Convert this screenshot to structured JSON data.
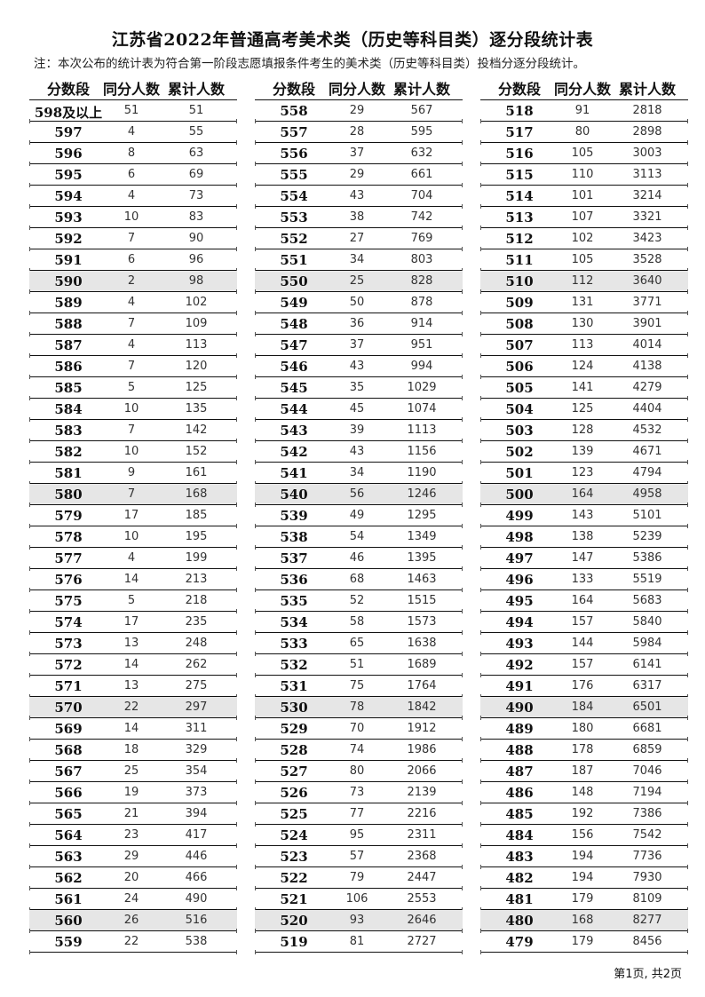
{
  "title": "江苏省2022年普通高考美术类（历史等科目类）逐分段统计表",
  "note": "注：本次公布的统计表为符合第一阶段志愿填报条件考生的美术类（历史等科目类）投档分逐分段统计。",
  "headers": [
    "分数段",
    "同分人数",
    "累计人数"
  ],
  "shade_color": "#e6e6e6",
  "shaded_scores": [
    "590",
    "580",
    "570",
    "560",
    "550",
    "540",
    "530",
    "520",
    "510",
    "500",
    "490",
    "480"
  ],
  "columns": [
    [
      [
        "598及以上",
        "51",
        "51"
      ],
      [
        "597",
        "4",
        "55"
      ],
      [
        "596",
        "8",
        "63"
      ],
      [
        "595",
        "6",
        "69"
      ],
      [
        "594",
        "4",
        "73"
      ],
      [
        "593",
        "10",
        "83"
      ],
      [
        "592",
        "7",
        "90"
      ],
      [
        "591",
        "6",
        "96"
      ],
      [
        "590",
        "2",
        "98"
      ],
      [
        "589",
        "4",
        "102"
      ],
      [
        "588",
        "7",
        "109"
      ],
      [
        "587",
        "4",
        "113"
      ],
      [
        "586",
        "7",
        "120"
      ],
      [
        "585",
        "5",
        "125"
      ],
      [
        "584",
        "10",
        "135"
      ],
      [
        "583",
        "7",
        "142"
      ],
      [
        "582",
        "10",
        "152"
      ],
      [
        "581",
        "9",
        "161"
      ],
      [
        "580",
        "7",
        "168"
      ],
      [
        "579",
        "17",
        "185"
      ],
      [
        "578",
        "10",
        "195"
      ],
      [
        "577",
        "4",
        "199"
      ],
      [
        "576",
        "14",
        "213"
      ],
      [
        "575",
        "5",
        "218"
      ],
      [
        "574",
        "17",
        "235"
      ],
      [
        "573",
        "13",
        "248"
      ],
      [
        "572",
        "14",
        "262"
      ],
      [
        "571",
        "13",
        "275"
      ],
      [
        "570",
        "22",
        "297"
      ],
      [
        "569",
        "14",
        "311"
      ],
      [
        "568",
        "18",
        "329"
      ],
      [
        "567",
        "25",
        "354"
      ],
      [
        "566",
        "19",
        "373"
      ],
      [
        "565",
        "21",
        "394"
      ],
      [
        "564",
        "23",
        "417"
      ],
      [
        "563",
        "29",
        "446"
      ],
      [
        "562",
        "20",
        "466"
      ],
      [
        "561",
        "24",
        "490"
      ],
      [
        "560",
        "26",
        "516"
      ],
      [
        "559",
        "22",
        "538"
      ]
    ],
    [
      [
        "558",
        "29",
        "567"
      ],
      [
        "557",
        "28",
        "595"
      ],
      [
        "556",
        "37",
        "632"
      ],
      [
        "555",
        "29",
        "661"
      ],
      [
        "554",
        "43",
        "704"
      ],
      [
        "553",
        "38",
        "742"
      ],
      [
        "552",
        "27",
        "769"
      ],
      [
        "551",
        "34",
        "803"
      ],
      [
        "550",
        "25",
        "828"
      ],
      [
        "549",
        "50",
        "878"
      ],
      [
        "548",
        "36",
        "914"
      ],
      [
        "547",
        "37",
        "951"
      ],
      [
        "546",
        "43",
        "994"
      ],
      [
        "545",
        "35",
        "1029"
      ],
      [
        "544",
        "45",
        "1074"
      ],
      [
        "543",
        "39",
        "1113"
      ],
      [
        "542",
        "43",
        "1156"
      ],
      [
        "541",
        "34",
        "1190"
      ],
      [
        "540",
        "56",
        "1246"
      ],
      [
        "539",
        "49",
        "1295"
      ],
      [
        "538",
        "54",
        "1349"
      ],
      [
        "537",
        "46",
        "1395"
      ],
      [
        "536",
        "68",
        "1463"
      ],
      [
        "535",
        "52",
        "1515"
      ],
      [
        "534",
        "58",
        "1573"
      ],
      [
        "533",
        "65",
        "1638"
      ],
      [
        "532",
        "51",
        "1689"
      ],
      [
        "531",
        "75",
        "1764"
      ],
      [
        "530",
        "78",
        "1842"
      ],
      [
        "529",
        "70",
        "1912"
      ],
      [
        "528",
        "74",
        "1986"
      ],
      [
        "527",
        "80",
        "2066"
      ],
      [
        "526",
        "73",
        "2139"
      ],
      [
        "525",
        "77",
        "2216"
      ],
      [
        "524",
        "95",
        "2311"
      ],
      [
        "523",
        "57",
        "2368"
      ],
      [
        "522",
        "79",
        "2447"
      ],
      [
        "521",
        "106",
        "2553"
      ],
      [
        "520",
        "93",
        "2646"
      ],
      [
        "519",
        "81",
        "2727"
      ]
    ],
    [
      [
        "518",
        "91",
        "2818"
      ],
      [
        "517",
        "80",
        "2898"
      ],
      [
        "516",
        "105",
        "3003"
      ],
      [
        "515",
        "110",
        "3113"
      ],
      [
        "514",
        "101",
        "3214"
      ],
      [
        "513",
        "107",
        "3321"
      ],
      [
        "512",
        "102",
        "3423"
      ],
      [
        "511",
        "105",
        "3528"
      ],
      [
        "510",
        "112",
        "3640"
      ],
      [
        "509",
        "131",
        "3771"
      ],
      [
        "508",
        "130",
        "3901"
      ],
      [
        "507",
        "113",
        "4014"
      ],
      [
        "506",
        "124",
        "4138"
      ],
      [
        "505",
        "141",
        "4279"
      ],
      [
        "504",
        "125",
        "4404"
      ],
      [
        "503",
        "128",
        "4532"
      ],
      [
        "502",
        "139",
        "4671"
      ],
      [
        "501",
        "123",
        "4794"
      ],
      [
        "500",
        "164",
        "4958"
      ],
      [
        "499",
        "143",
        "5101"
      ],
      [
        "498",
        "138",
        "5239"
      ],
      [
        "497",
        "147",
        "5386"
      ],
      [
        "496",
        "133",
        "5519"
      ],
      [
        "495",
        "164",
        "5683"
      ],
      [
        "494",
        "157",
        "5840"
      ],
      [
        "493",
        "144",
        "5984"
      ],
      [
        "492",
        "157",
        "6141"
      ],
      [
        "491",
        "176",
        "6317"
      ],
      [
        "490",
        "184",
        "6501"
      ],
      [
        "489",
        "180",
        "6681"
      ],
      [
        "488",
        "178",
        "6859"
      ],
      [
        "487",
        "187",
        "7046"
      ],
      [
        "486",
        "148",
        "7194"
      ],
      [
        "485",
        "192",
        "7386"
      ],
      [
        "484",
        "156",
        "7542"
      ],
      [
        "483",
        "194",
        "7736"
      ],
      [
        "482",
        "194",
        "7930"
      ],
      [
        "481",
        "179",
        "8109"
      ],
      [
        "480",
        "168",
        "8277"
      ],
      [
        "479",
        "179",
        "8456"
      ]
    ]
  ],
  "footer": "第1页, 共2页"
}
